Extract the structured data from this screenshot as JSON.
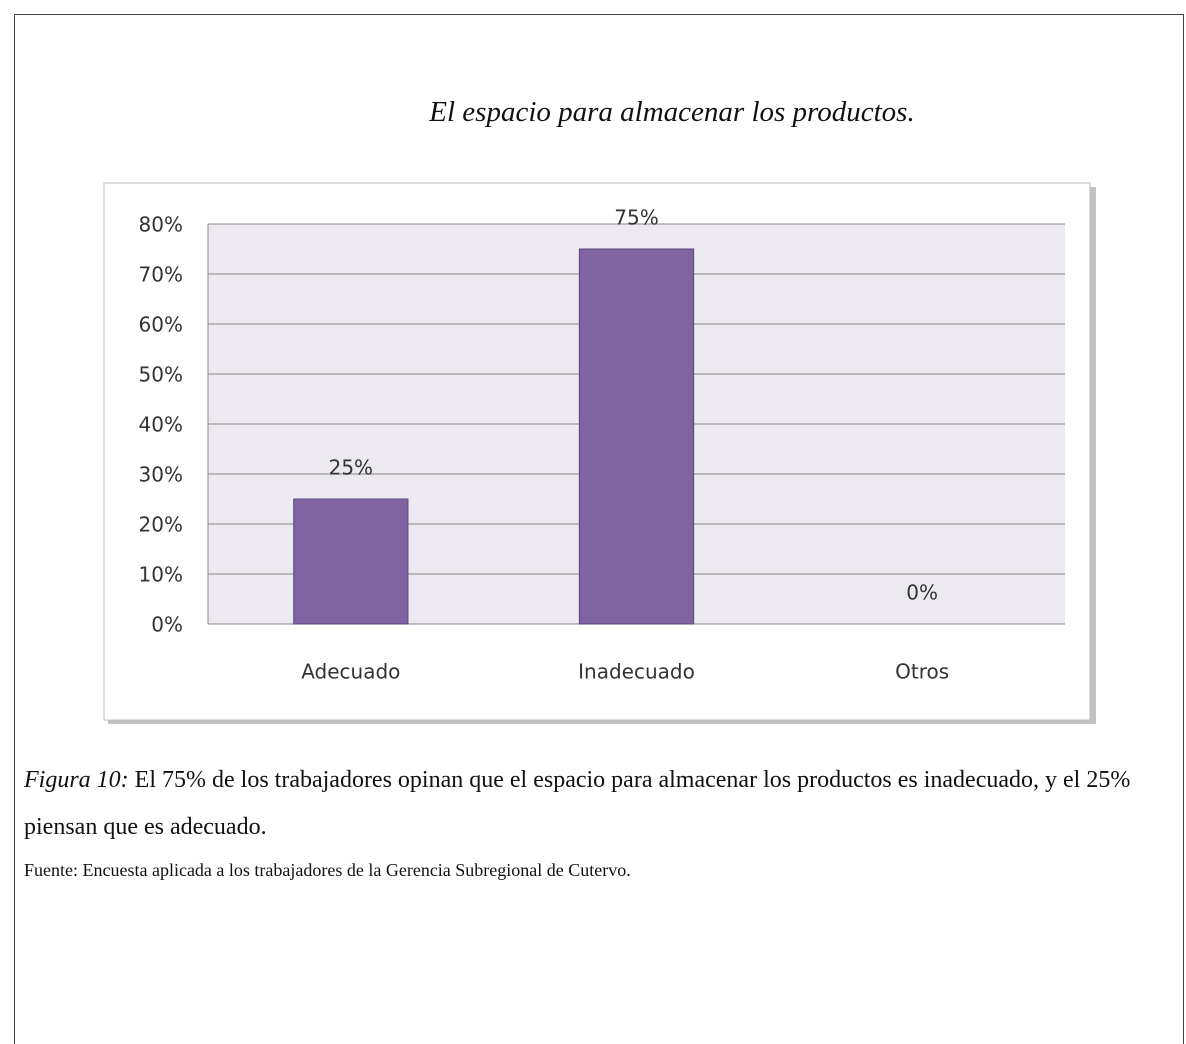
{
  "chart_data": {
    "type": "bar",
    "title": "El espacio para almacenar los productos.",
    "categories": [
      "Adecuado",
      "Inadecuado",
      "Otros"
    ],
    "values": [
      25,
      75,
      0
    ],
    "value_labels": [
      "25%",
      "75%",
      "0%"
    ],
    "color": "#8064a2",
    "ylim": [
      0,
      80
    ],
    "yticks": [
      {
        "value": 0,
        "label": "0%"
      },
      {
        "value": 10,
        "label": "10%"
      },
      {
        "value": 20,
        "label": "20%"
      },
      {
        "value": 30,
        "label": "30%"
      },
      {
        "value": 40,
        "label": "40%"
      },
      {
        "value": 50,
        "label": "50%"
      },
      {
        "value": 60,
        "label": "60%"
      },
      {
        "value": 70,
        "label": "70%"
      },
      {
        "value": 80,
        "label": "80%"
      }
    ],
    "grid": true
  },
  "caption": {
    "label": "Figura 10:",
    "text": "El 75% de los trabajadores opinan que el espacio para almacenar los productos es inadecuado, y el 25% piensan que es adecuado."
  },
  "source": "Fuente: Encuesta aplicada a los trabajadores de la Gerencia Subregional de Cutervo."
}
